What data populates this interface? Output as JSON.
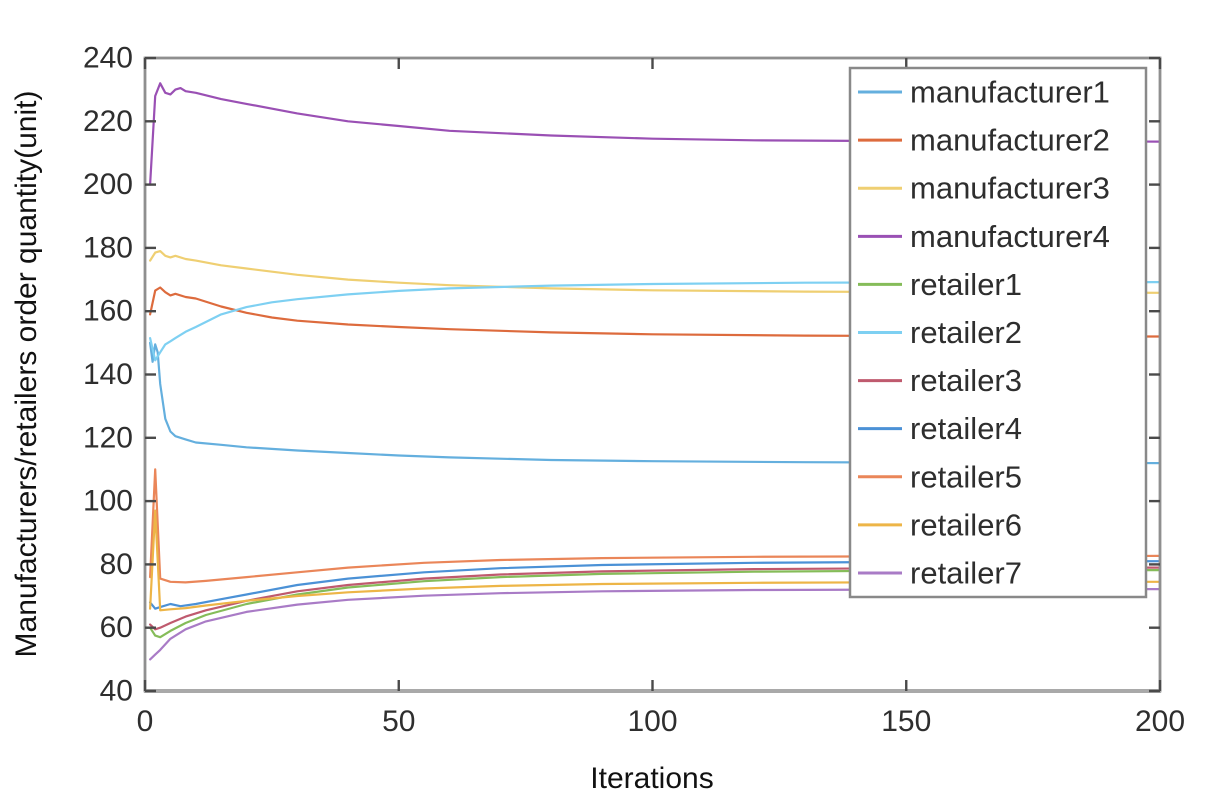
{
  "chart_data": {
    "type": "line",
    "title": "",
    "xlabel": "Iterations",
    "ylabel": "Manufacturers/retailers order quantity(unit)",
    "xlim": [
      0,
      200
    ],
    "ylim": [
      40,
      240
    ],
    "xticks": [
      0,
      50,
      100,
      150,
      200
    ],
    "yticks": [
      40,
      60,
      80,
      100,
      120,
      140,
      160,
      180,
      200,
      220,
      240
    ],
    "grid": false,
    "legend": {
      "position": "upper-right",
      "background": "#ffffff",
      "border_color": "#898989"
    },
    "axes": {
      "box_color": "#8f8f8f",
      "bottom_spine_color": "#a9a9a9",
      "tick_mark_color": "#4a4a4a",
      "tick_label_color": "#2e2e2e",
      "axis_label_color": "#111111"
    },
    "series": [
      {
        "name": "manufacturer1",
        "color": "#64afde",
        "x": [
          1,
          1.5,
          2,
          2.5,
          3,
          4,
          5,
          6,
          8,
          10,
          15,
          20,
          30,
          40,
          50,
          60,
          80,
          100,
          130,
          160,
          200
        ],
        "y": [
          150,
          144,
          149.5,
          147,
          137,
          126,
          122,
          120.5,
          119.5,
          118.5,
          117.8,
          117,
          116,
          115.2,
          114.4,
          113.8,
          113,
          112.6,
          112.3,
          112.1,
          112
        ]
      },
      {
        "name": "manufacturer2",
        "color": "#dd6b3d",
        "x": [
          1,
          2,
          3,
          4,
          5,
          6,
          8,
          10,
          15,
          20,
          25,
          30,
          40,
          50,
          60,
          80,
          100,
          130,
          160,
          200
        ],
        "y": [
          159,
          166.5,
          167.5,
          166,
          165,
          165.5,
          164.5,
          164,
          161.5,
          159.5,
          158,
          157,
          155.8,
          155,
          154.3,
          153.3,
          152.7,
          152.3,
          152.1,
          152
        ]
      },
      {
        "name": "manufacturer3",
        "color": "#efcf72",
        "x": [
          1,
          2,
          3,
          4,
          5,
          6,
          8,
          10,
          15,
          20,
          30,
          40,
          50,
          60,
          80,
          100,
          130,
          160,
          200
        ],
        "y": [
          176,
          178.5,
          179,
          177.5,
          177,
          177.5,
          176.5,
          176,
          174.5,
          173.5,
          171.5,
          170,
          169,
          168.2,
          167.2,
          166.6,
          166.2,
          166,
          165.8
        ]
      },
      {
        "name": "manufacturer4",
        "color": "#9a50b4",
        "x": [
          1,
          2,
          3,
          4,
          5,
          6,
          7,
          8,
          10,
          15,
          20,
          30,
          40,
          50,
          60,
          80,
          100,
          120,
          140,
          170,
          200
        ],
        "y": [
          200,
          228,
          232,
          229,
          228.5,
          230,
          230.5,
          229.5,
          229,
          227,
          225.5,
          222.5,
          220,
          218.5,
          217,
          215.5,
          214.5,
          214,
          213.8,
          213.7,
          213.6
        ]
      },
      {
        "name": "retailer1",
        "color": "#85bc59",
        "x": [
          1,
          2,
          3,
          5,
          8,
          12,
          20,
          30,
          40,
          55,
          70,
          90,
          120,
          160,
          200
        ],
        "y": [
          60,
          57.5,
          57,
          59,
          61.5,
          64,
          67.5,
          70.5,
          72.7,
          74.7,
          76,
          77,
          77.7,
          78.1,
          78.2
        ]
      },
      {
        "name": "retailer2",
        "color": "#7ed0f2",
        "x": [
          1,
          2,
          3,
          4,
          5,
          6,
          8,
          10,
          15,
          20,
          25,
          30,
          40,
          50,
          60,
          80,
          100,
          130,
          160,
          200
        ],
        "y": [
          151.5,
          144.5,
          147,
          149.5,
          150.5,
          151.5,
          153.5,
          155,
          159,
          161.3,
          162.8,
          163.8,
          165.3,
          166.4,
          167.2,
          168.1,
          168.6,
          169,
          169.1,
          169.2
        ]
      },
      {
        "name": "retailer3",
        "color": "#bf5a6e",
        "x": [
          1,
          2,
          3,
          5,
          8,
          12,
          20,
          30,
          40,
          55,
          70,
          90,
          120,
          160,
          200
        ],
        "y": [
          61,
          59.5,
          60,
          61.5,
          63.5,
          65.5,
          68.5,
          71.5,
          73.5,
          75.5,
          76.8,
          77.8,
          78.5,
          78.9,
          79
        ]
      },
      {
        "name": "retailer4",
        "color": "#4b91d6",
        "x": [
          1,
          2,
          3,
          5,
          7,
          10,
          15,
          20,
          30,
          40,
          55,
          70,
          90,
          120,
          160,
          200
        ],
        "y": [
          68,
          66,
          66.5,
          67.5,
          66.8,
          67.5,
          69,
          70.5,
          73.5,
          75.5,
          77.5,
          78.8,
          79.8,
          80.5,
          80.9,
          81
        ]
      },
      {
        "name": "retailer5",
        "color": "#ea8659",
        "x": [
          1,
          2,
          3,
          5,
          8,
          12,
          20,
          30,
          40,
          55,
          70,
          90,
          120,
          160,
          200
        ],
        "y": [
          76,
          110,
          75.5,
          74.5,
          74.3,
          74.8,
          76,
          77.5,
          79,
          80.5,
          81.4,
          82,
          82.4,
          82.6,
          82.7
        ]
      },
      {
        "name": "retailer6",
        "color": "#edb547",
        "x": [
          1,
          2,
          3,
          5,
          8,
          12,
          20,
          30,
          40,
          55,
          70,
          90,
          120,
          160,
          200
        ],
        "y": [
          66,
          97,
          65.5,
          65.8,
          66.2,
          67,
          68.5,
          70,
          71.2,
          72.4,
          73.2,
          73.8,
          74.2,
          74.4,
          74.5
        ]
      },
      {
        "name": "retailer7",
        "color": "#a97bc6",
        "x": [
          1,
          2,
          3,
          5,
          8,
          12,
          20,
          30,
          40,
          55,
          70,
          90,
          120,
          160,
          200
        ],
        "y": [
          50,
          51.5,
          53,
          56.5,
          59.5,
          62,
          65,
          67.3,
          68.8,
          70.1,
          70.9,
          71.5,
          71.9,
          72.1,
          72.2
        ]
      }
    ]
  }
}
